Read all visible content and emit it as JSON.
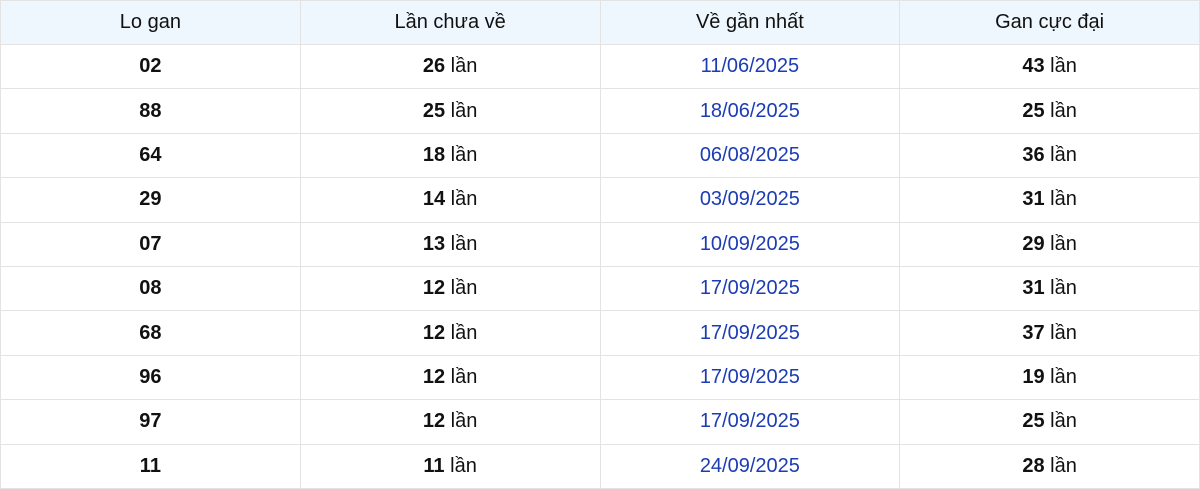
{
  "headers": [
    "Lo gan",
    "Lần chưa về",
    "Về gần nhất",
    "Gan cực đại"
  ],
  "unit": "lần",
  "date_color": "#1c3cb4",
  "rows": [
    {
      "number": "02",
      "missed": "26",
      "last": "11/06/2025",
      "max": "43"
    },
    {
      "number": "88",
      "missed": "25",
      "last": "18/06/2025",
      "max": "25"
    },
    {
      "number": "64",
      "missed": "18",
      "last": "06/08/2025",
      "max": "36"
    },
    {
      "number": "29",
      "missed": "14",
      "last": "03/09/2025",
      "max": "31"
    },
    {
      "number": "07",
      "missed": "13",
      "last": "10/09/2025",
      "max": "29"
    },
    {
      "number": "08",
      "missed": "12",
      "last": "17/09/2025",
      "max": "31"
    },
    {
      "number": "68",
      "missed": "12",
      "last": "17/09/2025",
      "max": "37"
    },
    {
      "number": "96",
      "missed": "12",
      "last": "17/09/2025",
      "max": "19"
    },
    {
      "number": "97",
      "missed": "12",
      "last": "17/09/2025",
      "max": "25"
    },
    {
      "number": "11",
      "missed": "11",
      "last": "24/09/2025",
      "max": "28"
    }
  ]
}
